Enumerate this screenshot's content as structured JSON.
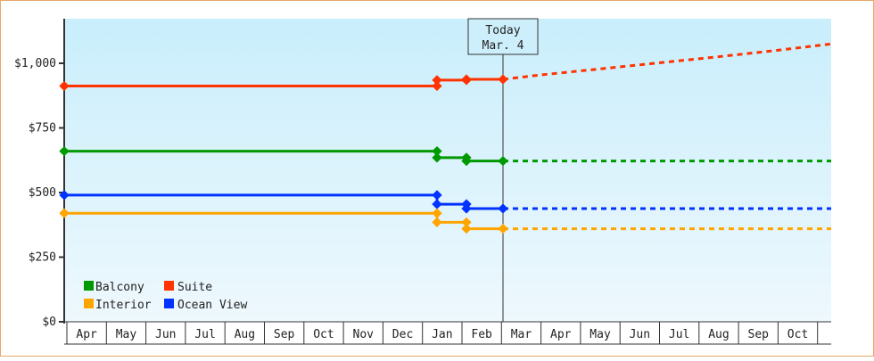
{
  "chart_data": {
    "type": "line",
    "title": "",
    "xlabel": "",
    "ylabel": "",
    "ylim": [
      0,
      1150
    ],
    "yticks": [
      {
        "value": 0,
        "label": "$0"
      },
      {
        "value": 250,
        "label": "$250"
      },
      {
        "value": 500,
        "label": "$500"
      },
      {
        "value": 750,
        "label": "$750"
      },
      {
        "value": 1000,
        "label": "$1,000"
      }
    ],
    "x_months": [
      "Apr",
      "May",
      "Jun",
      "Jul",
      "Aug",
      "Sep",
      "Oct",
      "Nov",
      "Dec",
      "Jan",
      "Feb",
      "Mar",
      "Apr",
      "May",
      "Jun",
      "Jul",
      "Aug",
      "Sep",
      "Oct"
    ],
    "today_marker": {
      "line1": "Today",
      "line2": "Mar. 4"
    },
    "legend": [
      {
        "name": "Balcony",
        "color": "#009900"
      },
      {
        "name": "Suite",
        "color": "#ff3300"
      },
      {
        "name": "Interior",
        "color": "#ffa500"
      },
      {
        "name": "Ocean View",
        "color": "#0033ff"
      }
    ],
    "series": [
      {
        "name": "Suite",
        "color": "#ff3300",
        "history": [
          {
            "date": "Apr 1",
            "value": 912
          },
          {
            "date": "Jan 1",
            "value": 912
          },
          {
            "date": "Jan 1",
            "value": 935
          },
          {
            "date": "Feb 1",
            "value": 935
          },
          {
            "date": "Feb 1",
            "value": 938
          },
          {
            "date": "Mar 4",
            "value": 938
          }
        ],
        "projection": [
          {
            "date": "Mar 4",
            "value": 938
          },
          {
            "date": "Apr",
            "value": 955
          },
          {
            "date": "Jun",
            "value": 985
          },
          {
            "date": "Aug",
            "value": 1020
          },
          {
            "date": "Oct",
            "value": 1050
          },
          {
            "date": "Nov end",
            "value": 1075
          }
        ]
      },
      {
        "name": "Balcony",
        "color": "#009900",
        "history": [
          {
            "date": "Apr 1",
            "value": 660
          },
          {
            "date": "Jan 1",
            "value": 660
          },
          {
            "date": "Jan 1",
            "value": 635
          },
          {
            "date": "Feb 1",
            "value": 635
          },
          {
            "date": "Feb 1",
            "value": 622
          },
          {
            "date": "Mar 4",
            "value": 622
          }
        ],
        "projection": [
          {
            "date": "Mar 4",
            "value": 622
          },
          {
            "date": "Nov end",
            "value": 622
          }
        ]
      },
      {
        "name": "Ocean View",
        "color": "#0033ff",
        "history": [
          {
            "date": "Apr 1",
            "value": 490
          },
          {
            "date": "Jan 1",
            "value": 490
          },
          {
            "date": "Jan 1",
            "value": 455
          },
          {
            "date": "Feb 1",
            "value": 455
          },
          {
            "date": "Feb 1",
            "value": 438
          },
          {
            "date": "Mar 4",
            "value": 438
          }
        ],
        "projection": [
          {
            "date": "Mar 4",
            "value": 438
          },
          {
            "date": "Nov end",
            "value": 438
          }
        ]
      },
      {
        "name": "Interior",
        "color": "#ffa500",
        "history": [
          {
            "date": "Apr 1",
            "value": 420
          },
          {
            "date": "Jan 1",
            "value": 420
          },
          {
            "date": "Jan 1",
            "value": 385
          },
          {
            "date": "Feb 1",
            "value": 385
          },
          {
            "date": "Feb 1",
            "value": 360
          },
          {
            "date": "Mar 4",
            "value": 360
          }
        ],
        "projection": [
          {
            "date": "Mar 4",
            "value": 360
          },
          {
            "date": "Nov end",
            "value": 360
          }
        ]
      }
    ],
    "grid": false,
    "legend_position": "bottom-left inside plot"
  }
}
